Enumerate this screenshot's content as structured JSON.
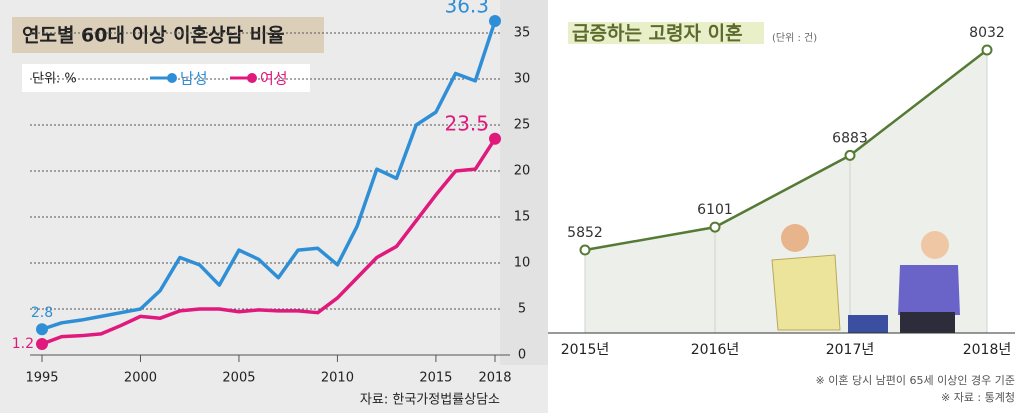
{
  "chart_data": [
    {
      "type": "line",
      "title": "연도별 60대 이상 이혼상담 비율",
      "unit": "단위: %",
      "source": "자료: 한국가정법률상담소",
      "x": [
        1995,
        1996,
        1997,
        1998,
        1999,
        2000,
        2001,
        2002,
        2003,
        2004,
        2005,
        2006,
        2007,
        2008,
        2009,
        2010,
        2011,
        2012,
        2013,
        2014,
        2015,
        2016,
        2017,
        2018
      ],
      "xlim": [
        1995,
        2018
      ],
      "xticks": [
        1995,
        2000,
        2005,
        2010,
        2015,
        2018
      ],
      "ylim": [
        0,
        35
      ],
      "yticks": [
        0,
        5,
        10,
        15,
        20,
        25,
        30,
        35
      ],
      "grid": true,
      "series": [
        {
          "name": "남성",
          "color": "#2f8fd6",
          "values": [
            2.8,
            3.5,
            3.8,
            4.2,
            4.6,
            5.0,
            7.0,
            10.6,
            9.8,
            7.6,
            11.4,
            10.4,
            8.4,
            11.4,
            11.6,
            9.8,
            14.0,
            20.2,
            19.2,
            25.0,
            26.4,
            30.6,
            29.8,
            36.3
          ]
        },
        {
          "name": "여성",
          "color": "#e0197d",
          "values": [
            1.2,
            2.0,
            2.1,
            2.3,
            3.2,
            4.2,
            4.0,
            4.8,
            5.0,
            5.0,
            4.7,
            4.9,
            4.8,
            4.8,
            4.6,
            6.2,
            8.4,
            10.6,
            11.8,
            14.6,
            17.4,
            20.0,
            20.2,
            23.5
          ]
        }
      ]
    },
    {
      "type": "area",
      "title": "급증하는 고령자 이혼",
      "unit": "(단위 : 건)",
      "categories": [
        "2015년",
        "2016년",
        "2017년",
        "2018년"
      ],
      "values": [
        5852,
        6101,
        6883,
        8032
      ],
      "color": "#557a36",
      "notes": [
        "※ 이혼 당시 남편이 65세 이상인 경우 기준",
        "※ 자료 : 통계청"
      ]
    }
  ]
}
